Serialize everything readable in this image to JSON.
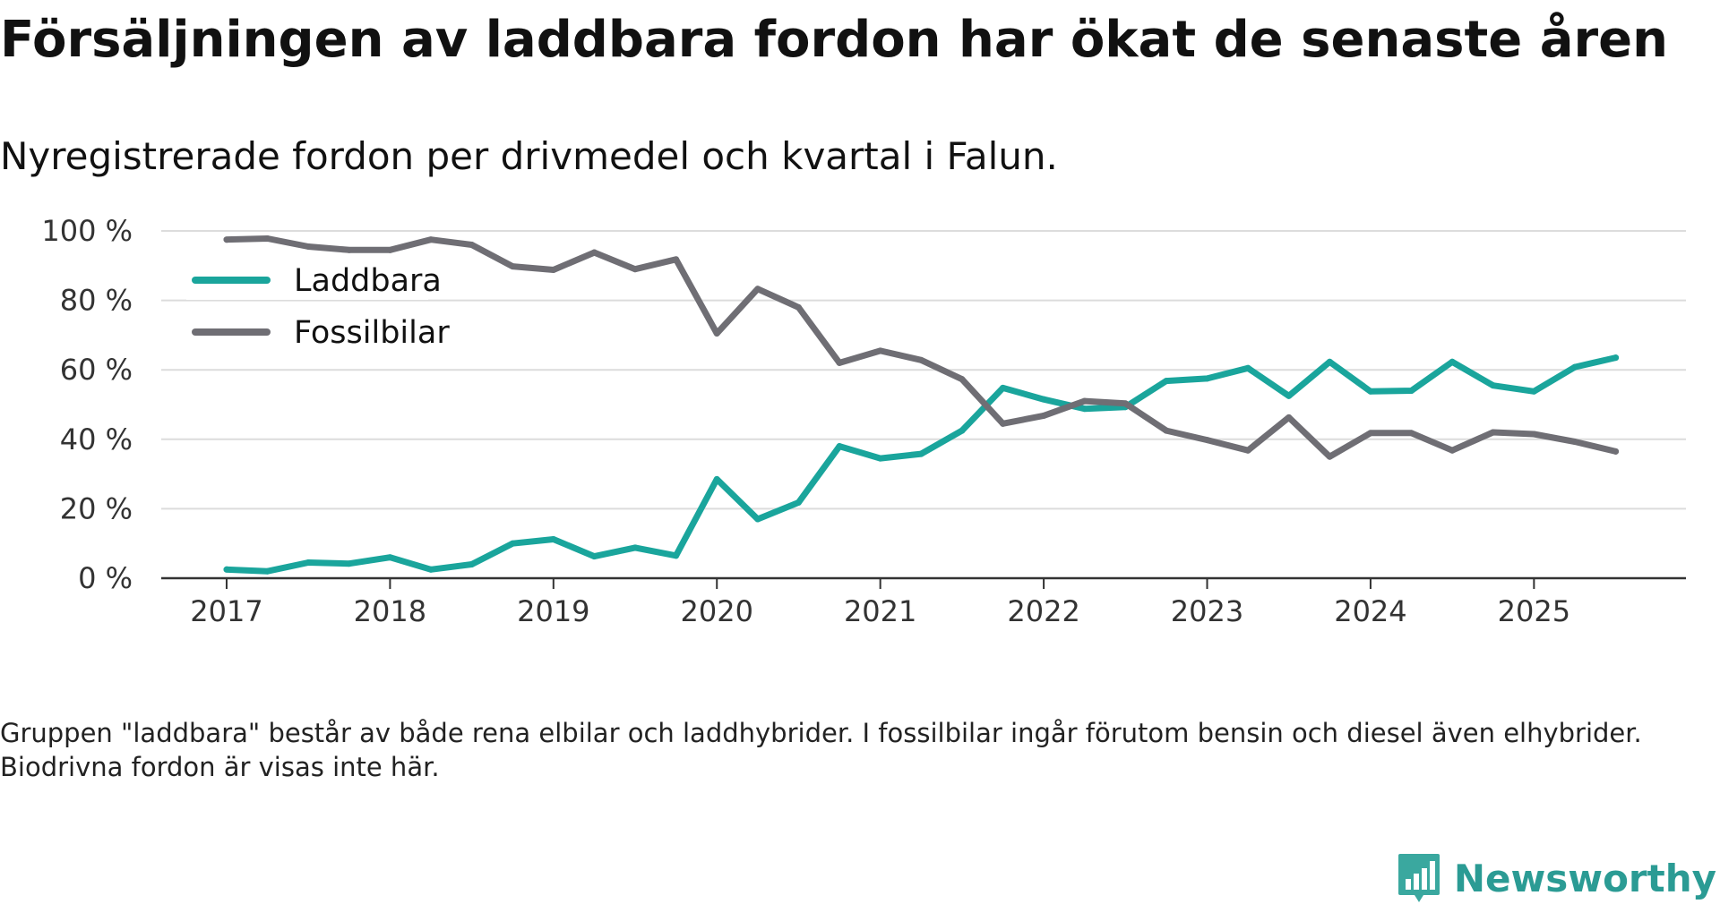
{
  "title": "Försäljningen av laddbara fordon har ökat de senaste åren",
  "subtitle": "Nyregistrerade fordon per drivmedel och kvartal i Falun.",
  "note": "Gruppen \"laddbara\" består av både rena elbilar och laddhybrider. I fossilbilar ingår förutom bensin och diesel även elhybrider. Biodrivna fordon är visas inte här.",
  "brand": {
    "name": "Newsworthy"
  },
  "colors": {
    "laddbara": "#1aa59c",
    "fossil": "#6f6e74",
    "grid": "#dcdcdc",
    "axis": "#333333"
  },
  "chart_data": {
    "type": "line",
    "title": "Försäljningen av laddbara fordon har ökat de senaste åren",
    "xlabel": "",
    "ylabel": "",
    "ylim": [
      0,
      100
    ],
    "yticks": [
      0,
      20,
      40,
      60,
      80,
      100
    ],
    "ytick_labels": [
      "0 %",
      "20 %",
      "40 %",
      "60 %",
      "80 %",
      "100 %"
    ],
    "xticks": [
      2017,
      2018,
      2019,
      2020,
      2021,
      2022,
      2023,
      2024,
      2025
    ],
    "xlim": [
      2016.6,
      2025.93
    ],
    "x": [
      2017,
      2017.25,
      2017.5,
      2017.75,
      2018,
      2018.25,
      2018.5,
      2018.75,
      2019,
      2019.25,
      2019.5,
      2019.75,
      2020,
      2020.25,
      2020.5,
      2020.75,
      2021,
      2021.25,
      2021.5,
      2021.75,
      2022,
      2022.25,
      2022.5,
      2022.75,
      2023,
      2023.25,
      2023.5,
      2023.75,
      2024,
      2024.25,
      2024.5,
      2024.75,
      2025,
      2025.25,
      2025.5
    ],
    "series": [
      {
        "name": "Laddbara",
        "values": [
          2.5,
          2,
          4.5,
          4.2,
          6,
          2.5,
          4,
          10,
          11.2,
          6.3,
          8.8,
          6.5,
          28.5,
          17,
          21.8,
          38,
          34.5,
          35.8,
          42.5,
          54.8,
          51.5,
          48.8,
          49.3,
          56.8,
          57.5,
          60.5,
          52.5,
          62.3,
          53.8,
          54,
          62.3,
          55.5,
          53.8,
          60.8,
          63.5
        ]
      },
      {
        "name": "Fossilbilar",
        "values": [
          97.5,
          97.8,
          95.5,
          94.5,
          94.5,
          97.5,
          96,
          89.8,
          88.8,
          93.8,
          89,
          91.8,
          70.5,
          83.3,
          78,
          62,
          65.5,
          62.8,
          57.3,
          44.5,
          46.8,
          51,
          50.3,
          42.5,
          39.8,
          36.8,
          46.3,
          35,
          41.8,
          41.8,
          36.8,
          42,
          41.5,
          39.3,
          36.5
        ]
      }
    ],
    "legend": {
      "position": "top-left",
      "entries": [
        "Laddbara",
        "Fossilbilar"
      ]
    }
  }
}
